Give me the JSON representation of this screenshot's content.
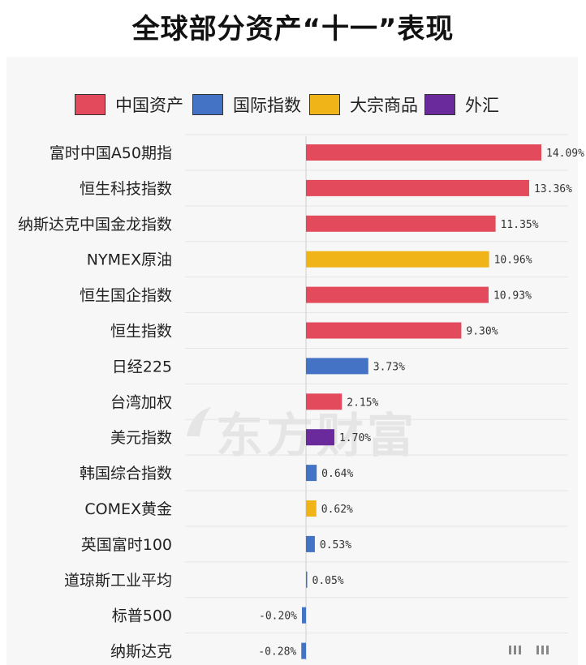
{
  "title": "全球部分资产“十一”表现",
  "watermark": "东方财富",
  "legend": [
    {
      "label": "中国资产",
      "color": "#e34a5c"
    },
    {
      "label": "国际指数",
      "color": "#4472c4"
    },
    {
      "label": "大宗商品",
      "color": "#f0b418"
    },
    {
      "label": "外汇",
      "color": "#6a2a9c"
    }
  ],
  "chart_data": {
    "type": "bar",
    "orientation": "horizontal",
    "categories": [
      "富时中国A50期指",
      "恒生科技指数",
      "纳斯达克中国金龙指数",
      "NYMEX原油",
      "恒生国企指数",
      "恒生指数",
      "日经225",
      "台湾加权",
      "美元指数",
      "韩国综合指数",
      "COMEX黄金",
      "英国富时100",
      "道琼斯工业平均",
      "标普500",
      "纳斯达克"
    ],
    "values": [
      14.09,
      13.36,
      11.35,
      10.96,
      10.93,
      9.3,
      3.73,
      2.15,
      1.7,
      0.64,
      0.62,
      0.53,
      0.05,
      -0.2,
      -0.28
    ],
    "value_labels": [
      "14.09%",
      "13.36%",
      "11.35%",
      "10.96%",
      "10.93%",
      "9.30%",
      "3.73%",
      "2.15%",
      "1.70%",
      "0.64%",
      "0.62%",
      "0.53%",
      "0.05%",
      "-0.20%",
      "-0.28%"
    ],
    "groups": [
      "中国资产",
      "中国资产",
      "中国资产",
      "大宗商品",
      "中国资产",
      "中国资产",
      "国际指数",
      "中国资产",
      "外汇",
      "国际指数",
      "大宗商品",
      "国际指数",
      "国际指数",
      "国际指数",
      "国际指数"
    ],
    "xlim": [
      -0.3,
      14.09
    ],
    "grid": true,
    "legend_position": "top"
  }
}
